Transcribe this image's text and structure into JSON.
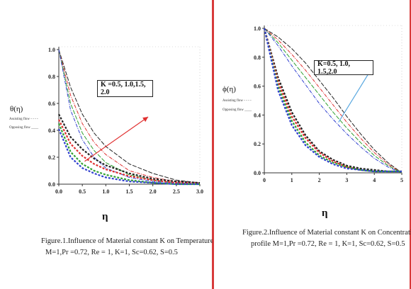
{
  "chart_data": [
    {
      "type": "line",
      "ylabel": "θ(η)",
      "xlabel": "η",
      "xlim": [
        0,
        3.0
      ],
      "ylim": [
        0,
        1.0
      ],
      "xticks": [
        "0.0",
        "0.5",
        "1.0",
        "1.5",
        "2.0",
        "2.5",
        "3.0"
      ],
      "yticks": [
        "0.0",
        "0.2",
        "0.4",
        "0.6",
        "0.8",
        "1.0"
      ],
      "annotation": "K =0.5, 1.0,1.5, 2.0",
      "legend": [
        "Assisting flow - - - -",
        "Opposing flow ____"
      ],
      "caption": [
        "Figure.1.Influence of Material constant K on Temperature profile",
        "M=1,Pr =0.72, Re = 1, K=1, Sc=0.62,  S=0.5"
      ],
      "colors": [
        "#222222",
        "#e03030",
        "#30a030",
        "#3040d0"
      ],
      "series": [
        {
          "style": "solid",
          "color": "#222222",
          "x": [
            0,
            0.25,
            0.5,
            0.75,
            1.0,
            1.5,
            2.0,
            2.5,
            3.0
          ],
          "values": [
            1.0,
            0.72,
            0.52,
            0.38,
            0.28,
            0.15,
            0.08,
            0.03,
            0.01
          ]
        },
        {
          "style": "solid",
          "color": "#e03030",
          "x": [
            0,
            0.25,
            0.5,
            0.75,
            1.0,
            1.5,
            2.0,
            2.5,
            3.0
          ],
          "values": [
            1.0,
            0.66,
            0.45,
            0.31,
            0.22,
            0.1,
            0.05,
            0.02,
            0.01
          ]
        },
        {
          "style": "solid",
          "color": "#30a030",
          "x": [
            0,
            0.25,
            0.5,
            0.75,
            1.0,
            1.5,
            2.0,
            2.5,
            3.0
          ],
          "values": [
            1.0,
            0.6,
            0.38,
            0.25,
            0.16,
            0.07,
            0.03,
            0.01,
            0.0
          ]
        },
        {
          "style": "solid",
          "color": "#3040d0",
          "x": [
            0,
            0.25,
            0.5,
            0.75,
            1.0,
            1.5,
            2.0,
            2.5,
            3.0
          ],
          "values": [
            1.0,
            0.55,
            0.33,
            0.2,
            0.12,
            0.05,
            0.02,
            0.01,
            0.0
          ]
        },
        {
          "style": "dashed",
          "color": "#222222",
          "x": [
            0,
            0.25,
            0.5,
            0.75,
            1.0,
            1.5,
            2.0,
            2.5,
            3.0
          ],
          "values": [
            0.52,
            0.35,
            0.26,
            0.19,
            0.14,
            0.08,
            0.04,
            0.02,
            0.01
          ]
        },
        {
          "style": "dashed",
          "color": "#e03030",
          "x": [
            0,
            0.25,
            0.5,
            0.75,
            1.0,
            1.5,
            2.0,
            2.5,
            3.0
          ],
          "values": [
            0.48,
            0.3,
            0.21,
            0.15,
            0.11,
            0.06,
            0.03,
            0.01,
            0.0
          ]
        },
        {
          "style": "dashed",
          "color": "#30a030",
          "x": [
            0,
            0.25,
            0.5,
            0.75,
            1.0,
            1.5,
            2.0,
            2.5,
            3.0
          ],
          "values": [
            0.45,
            0.24,
            0.15,
            0.1,
            0.07,
            0.03,
            0.01,
            0.0,
            0.0
          ]
        },
        {
          "style": "dashed",
          "color": "#3040d0",
          "x": [
            0,
            0.25,
            0.5,
            0.75,
            1.0,
            1.5,
            2.0,
            2.5,
            3.0
          ],
          "values": [
            0.41,
            0.2,
            0.12,
            0.08,
            0.05,
            0.02,
            0.01,
            0.0,
            0.0
          ]
        }
      ]
    },
    {
      "type": "line",
      "ylabel": "ϕ(η)",
      "xlabel": "η",
      "xlim": [
        0,
        5
      ],
      "ylim": [
        0,
        1.0
      ],
      "xticks": [
        "0",
        "1",
        "2",
        "3",
        "4",
        "5"
      ],
      "yticks": [
        "0.0",
        "0.2",
        "0.4",
        "0.6",
        "0.8",
        "1.0"
      ],
      "annotation": "K=0.5, 1.0, 1.5,2.0",
      "legend": [
        "Assisting flow - - - -",
        "Opposing flow ____"
      ],
      "caption": [
        "Figure.2.Influence of Material constant K on Concentration",
        "profile M=1,Pr =0.72, Re = 1, K=1, Sc=0.62,  S=0.5"
      ],
      "colors": [
        "#222222",
        "#e03030",
        "#30a030",
        "#3040d0"
      ],
      "series": [
        {
          "style": "solid",
          "color": "#222222",
          "x": [
            0,
            0.5,
            1,
            1.5,
            2,
            2.5,
            3,
            3.5,
            4,
            4.5,
            5
          ],
          "values": [
            1.0,
            0.94,
            0.86,
            0.76,
            0.64,
            0.52,
            0.39,
            0.27,
            0.16,
            0.07,
            0.0
          ]
        },
        {
          "style": "solid",
          "color": "#e03030",
          "x": [
            0,
            0.5,
            1,
            1.5,
            2,
            2.5,
            3,
            3.5,
            4,
            4.5,
            5
          ],
          "values": [
            1.0,
            0.92,
            0.82,
            0.71,
            0.59,
            0.47,
            0.35,
            0.24,
            0.14,
            0.06,
            0.0
          ]
        },
        {
          "style": "solid",
          "color": "#30a030",
          "x": [
            0,
            0.5,
            1,
            1.5,
            2,
            2.5,
            3,
            3.5,
            4,
            4.5,
            5
          ],
          "values": [
            1.0,
            0.9,
            0.78,
            0.66,
            0.54,
            0.42,
            0.31,
            0.21,
            0.12,
            0.05,
            0.0
          ]
        },
        {
          "style": "solid",
          "color": "#3040d0",
          "x": [
            0,
            0.5,
            1,
            1.5,
            2,
            2.5,
            3,
            3.5,
            4,
            4.5,
            5
          ],
          "values": [
            1.0,
            0.88,
            0.74,
            0.61,
            0.48,
            0.37,
            0.27,
            0.18,
            0.1,
            0.04,
            0.0
          ]
        },
        {
          "style": "dashed",
          "color": "#222222",
          "x": [
            0,
            0.5,
            1,
            1.5,
            2,
            2.5,
            3,
            3.5,
            4,
            4.5,
            5
          ],
          "values": [
            1.0,
            0.66,
            0.42,
            0.26,
            0.15,
            0.09,
            0.05,
            0.03,
            0.02,
            0.01,
            0.01
          ]
        },
        {
          "style": "dashed",
          "color": "#e03030",
          "x": [
            0,
            0.5,
            1,
            1.5,
            2,
            2.5,
            3,
            3.5,
            4,
            4.5,
            5
          ],
          "values": [
            1.0,
            0.63,
            0.39,
            0.24,
            0.14,
            0.08,
            0.04,
            0.02,
            0.01,
            0.01,
            0.01
          ]
        },
        {
          "style": "dashed",
          "color": "#30a030",
          "x": [
            0,
            0.5,
            1,
            1.5,
            2,
            2.5,
            3,
            3.5,
            4,
            4.5,
            5
          ],
          "values": [
            1.0,
            0.6,
            0.36,
            0.21,
            0.12,
            0.07,
            0.04,
            0.02,
            0.01,
            0.01,
            0.01
          ]
        },
        {
          "style": "dashed",
          "color": "#3040d0",
          "x": [
            0,
            0.5,
            1,
            1.5,
            2,
            2.5,
            3,
            3.5,
            4,
            4.5,
            5
          ],
          "values": [
            1.0,
            0.57,
            0.33,
            0.19,
            0.11,
            0.06,
            0.03,
            0.02,
            0.01,
            0.01,
            0.01
          ]
        }
      ]
    }
  ]
}
